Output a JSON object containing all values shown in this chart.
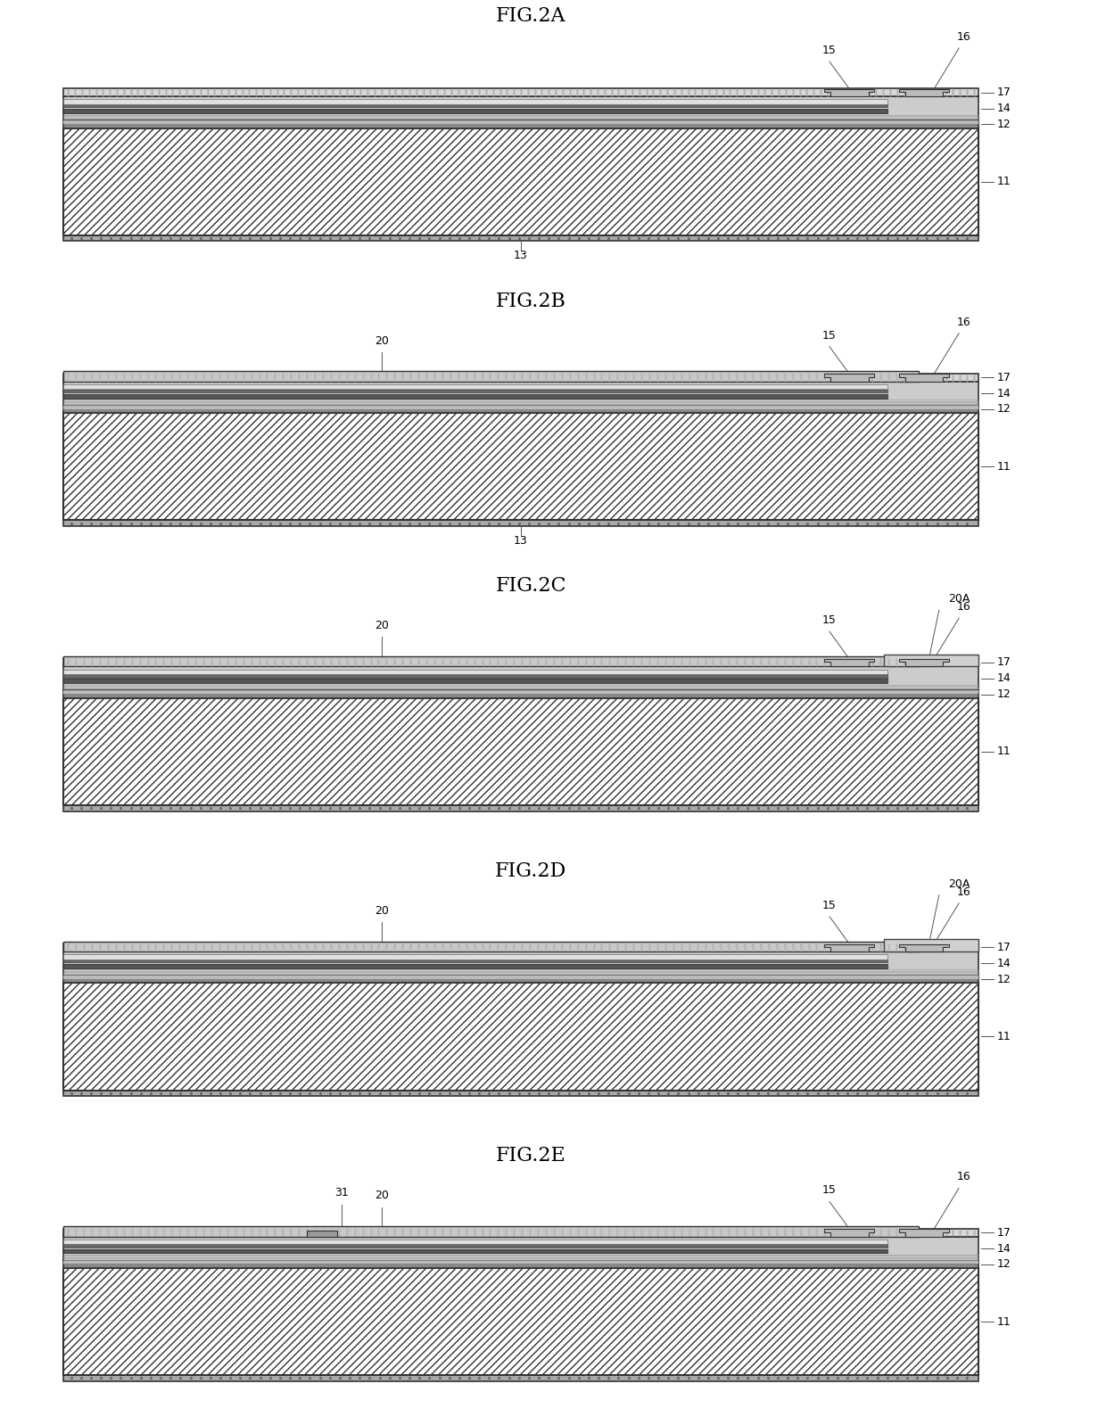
{
  "figures": [
    {
      "label": "FIG.2A",
      "show20": false,
      "show20A": false,
      "show31": false,
      "has13": true
    },
    {
      "label": "FIG.2B",
      "show20": true,
      "show20A": false,
      "show31": false,
      "has13": true
    },
    {
      "label": "FIG.2C",
      "show20": true,
      "show20A": true,
      "show31": false,
      "has13": false
    },
    {
      "label": "FIG.2D",
      "show20": true,
      "show20A": true,
      "show31": false,
      "has13": false
    },
    {
      "label": "FIG.2E",
      "show20": true,
      "show20A": false,
      "show31": true,
      "has13": false
    }
  ],
  "page_bg": "#ffffff",
  "fig_width": 12.4,
  "fig_height": 15.98
}
